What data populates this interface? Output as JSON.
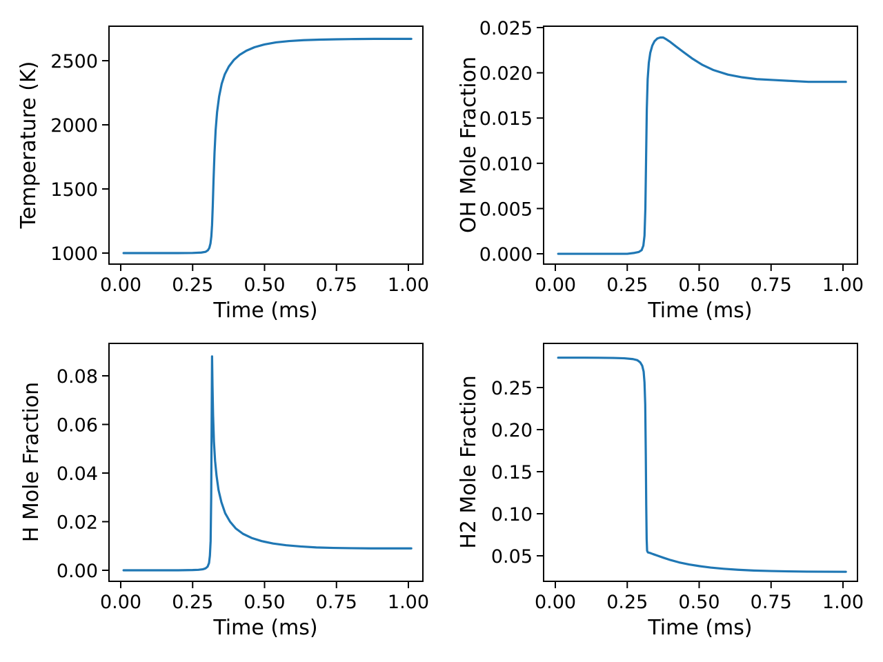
{
  "figure": {
    "background_color": "#ffffff",
    "line_color": "#1f77b4",
    "text_color": "#000000",
    "grid_rows": 2,
    "grid_cols": 2
  },
  "chart_data": [
    {
      "id": "temperature",
      "type": "line",
      "title": "",
      "xlabel": "Time (ms)",
      "ylabel": "Temperature (K)",
      "xlim": [
        -0.0408,
        1.0504
      ],
      "ylim": [
        914,
        2769
      ],
      "grid": false,
      "legend": null,
      "xtick_values": [
        0.0,
        0.25,
        0.5,
        0.75,
        1.0
      ],
      "xtick_labels": [
        "0.00",
        "0.25",
        "0.50",
        "0.75",
        "1.00"
      ],
      "ytick_values": [
        1000,
        1500,
        2000,
        2500
      ],
      "ytick_labels": [
        "1000",
        "1500",
        "2000",
        "2500"
      ],
      "series": [
        {
          "name": "Temperature (K)",
          "x": [
            0.01,
            0.05,
            0.1,
            0.15,
            0.2,
            0.25,
            0.28,
            0.295,
            0.303,
            0.308,
            0.312,
            0.315,
            0.3175,
            0.32,
            0.3225,
            0.326,
            0.33,
            0.335,
            0.342,
            0.351,
            0.362,
            0.376,
            0.393,
            0.413,
            0.437,
            0.465,
            0.5,
            0.54,
            0.585,
            0.635,
            0.69,
            0.75,
            0.815,
            0.88,
            0.94,
            1.01
          ],
          "y": [
            1000,
            1000,
            1000,
            1000,
            1000,
            1001,
            1004,
            1010,
            1022,
            1040,
            1075,
            1130,
            1220,
            1370,
            1560,
            1780,
            1960,
            2100,
            2220,
            2320,
            2395,
            2455,
            2505,
            2545,
            2578,
            2605,
            2627,
            2643,
            2653,
            2660,
            2664,
            2667,
            2669,
            2670,
            2670,
            2670
          ]
        }
      ]
    },
    {
      "id": "oh-mole-fraction",
      "type": "line",
      "title": "",
      "xlabel": "Time (ms)",
      "ylabel": "OH Mole Fraction",
      "xlim": [
        -0.0408,
        1.0504
      ],
      "ylim": [
        -0.00114,
        0.02515
      ],
      "grid": false,
      "legend": null,
      "xtick_values": [
        0.0,
        0.25,
        0.5,
        0.75,
        1.0
      ],
      "xtick_labels": [
        "0.00",
        "0.25",
        "0.50",
        "0.75",
        "1.00"
      ],
      "ytick_values": [
        0.0,
        0.005,
        0.01,
        0.015,
        0.02,
        0.025
      ],
      "ytick_labels": [
        "0.000",
        "0.005",
        "0.010",
        "0.015",
        "0.020",
        "0.025"
      ],
      "series": [
        {
          "name": "OH Mole Fraction",
          "x": [
            0.01,
            0.05,
            0.1,
            0.15,
            0.2,
            0.25,
            0.275,
            0.29,
            0.3,
            0.306,
            0.31,
            0.313,
            0.3155,
            0.318,
            0.321,
            0.325,
            0.33,
            0.337,
            0.345,
            0.355,
            0.365,
            0.375,
            0.386,
            0.4,
            0.42,
            0.445,
            0.475,
            0.51,
            0.55,
            0.6,
            0.65,
            0.7,
            0.76,
            0.82,
            0.88,
            0.94,
            1.01
          ],
          "y": [
            0.0,
            0.0,
            0.0,
            0.0,
            0.0,
            0.0,
            0.0001,
            0.0002,
            0.0004,
            0.0009,
            0.002,
            0.005,
            0.0105,
            0.016,
            0.0193,
            0.0211,
            0.0222,
            0.023,
            0.0235,
            0.0238,
            0.0239,
            0.0239,
            0.0237,
            0.0234,
            0.0229,
            0.0223,
            0.0216,
            0.0209,
            0.0203,
            0.0198,
            0.0195,
            0.0193,
            0.0192,
            0.0191,
            0.019,
            0.019,
            0.019
          ]
        }
      ]
    },
    {
      "id": "h-mole-fraction",
      "type": "line",
      "title": "",
      "xlabel": "Time (ms)",
      "ylabel": "H Mole Fraction",
      "xlim": [
        -0.0408,
        1.0504
      ],
      "ylim": [
        -0.00454,
        0.09333
      ],
      "grid": false,
      "legend": null,
      "xtick_values": [
        0.0,
        0.25,
        0.5,
        0.75,
        1.0
      ],
      "xtick_labels": [
        "0.00",
        "0.25",
        "0.50",
        "0.75",
        "1.00"
      ],
      "ytick_values": [
        0.0,
        0.02,
        0.04,
        0.06,
        0.08
      ],
      "ytick_labels": [
        "0.00",
        "0.02",
        "0.04",
        "0.06",
        "0.08"
      ],
      "series": [
        {
          "name": "H Mole Fraction",
          "x": [
            0.01,
            0.05,
            0.1,
            0.15,
            0.2,
            0.25,
            0.27,
            0.285,
            0.295,
            0.302,
            0.307,
            0.31,
            0.3125,
            0.3145,
            0.316,
            0.3175,
            0.319,
            0.321,
            0.324,
            0.328,
            0.333,
            0.34,
            0.35,
            0.363,
            0.38,
            0.4,
            0.425,
            0.455,
            0.49,
            0.53,
            0.575,
            0.625,
            0.68,
            0.74,
            0.8,
            0.87,
            0.94,
            1.01
          ],
          "y": [
            0.0,
            0.0,
            0.0,
            0.0,
            0.0,
            0.0001,
            0.0002,
            0.0004,
            0.0008,
            0.0015,
            0.003,
            0.006,
            0.012,
            0.03,
            0.06,
            0.088,
            0.076,
            0.064,
            0.053,
            0.045,
            0.039,
            0.033,
            0.028,
            0.0235,
            0.02,
            0.0172,
            0.015,
            0.0133,
            0.012,
            0.011,
            0.0103,
            0.0098,
            0.0094,
            0.0092,
            0.0091,
            0.009,
            0.009,
            0.009
          ]
        }
      ]
    },
    {
      "id": "h2-mole-fraction",
      "type": "line",
      "title": "",
      "xlabel": "Time (ms)",
      "ylabel": "H2 Mole Fraction",
      "xlim": [
        -0.0408,
        1.0504
      ],
      "ylim": [
        0.01967,
        0.30246
      ],
      "grid": false,
      "legend": null,
      "xtick_values": [
        0.0,
        0.25,
        0.5,
        0.75,
        1.0
      ],
      "xtick_labels": [
        "0.00",
        "0.25",
        "0.50",
        "0.75",
        "1.00"
      ],
      "ytick_values": [
        0.05,
        0.1,
        0.15,
        0.2,
        0.25
      ],
      "ytick_labels": [
        "0.05",
        "0.10",
        "0.15",
        "0.20",
        "0.25"
      ],
      "series": [
        {
          "name": "H2 Mole Fraction",
          "x": [
            0.01,
            0.05,
            0.1,
            0.15,
            0.2,
            0.24,
            0.27,
            0.285,
            0.295,
            0.302,
            0.307,
            0.31,
            0.3125,
            0.3145,
            0.316,
            0.3175,
            0.319,
            0.322,
            0.33,
            0.34,
            0.355,
            0.375,
            0.4,
            0.43,
            0.465,
            0.5,
            0.54,
            0.585,
            0.635,
            0.69,
            0.75,
            0.81,
            0.875,
            0.94,
            1.01
          ],
          "y": [
            0.2855,
            0.2855,
            0.2855,
            0.2854,
            0.2852,
            0.2848,
            0.2838,
            0.2825,
            0.28,
            0.276,
            0.269,
            0.256,
            0.23,
            0.17,
            0.11,
            0.07,
            0.056,
            0.054,
            0.0533,
            0.052,
            0.0502,
            0.0478,
            0.045,
            0.0422,
            0.0397,
            0.0378,
            0.036,
            0.0346,
            0.0334,
            0.0325,
            0.0319,
            0.0315,
            0.0312,
            0.0311,
            0.031
          ]
        }
      ]
    }
  ]
}
